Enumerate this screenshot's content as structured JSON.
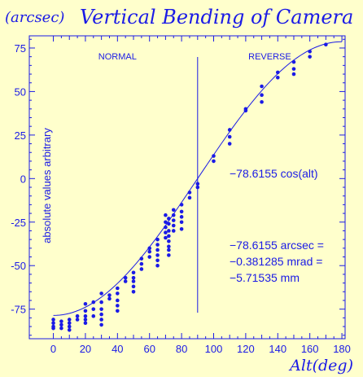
{
  "chart_data": {
    "type": "scatter",
    "unit_label": "(arcsec)",
    "title": "Vertical Bending of Camera",
    "xlabel": "Alt(deg)",
    "ylabel": "absolute values arbitrary",
    "xlim": [
      -15,
      182
    ],
    "ylim": [
      -92,
      82
    ],
    "xticks": [
      0,
      20,
      40,
      60,
      80,
      100,
      120,
      140,
      160,
      180
    ],
    "yticks": [
      75,
      50,
      25,
      0,
      -25,
      -50,
      -75
    ],
    "xtick_labels": [
      "0",
      "20",
      "40",
      "60",
      "80",
      "100",
      "120",
      "140",
      "160",
      "180"
    ],
    "ytick_labels": [
      "75",
      "50",
      "25",
      "0",
      "-25",
      "-50",
      "-75"
    ],
    "divider_x": 90,
    "regions": [
      {
        "label": "NORMAL",
        "x": 40
      },
      {
        "label": "REVERSE",
        "x": 135
      }
    ],
    "fit": {
      "amplitude": -78.6155,
      "label": "−78.6155  cos(alt)"
    },
    "fit_lines": [
      "−78.6155  arcsec =",
      "−0.381285  mrad =",
      "−5.71535  mm"
    ],
    "colors": {
      "accent": "#1a1ae6",
      "background": "#ffffcc"
    },
    "points": [
      [
        0,
        -81
      ],
      [
        0,
        -83
      ],
      [
        0,
        -85
      ],
      [
        0,
        -86
      ],
      [
        5,
        -82
      ],
      [
        5,
        -84
      ],
      [
        5,
        -86
      ],
      [
        10,
        -81
      ],
      [
        10,
        -83
      ],
      [
        10,
        -85
      ],
      [
        10,
        -87
      ],
      [
        15,
        -79
      ],
      [
        15,
        -81
      ],
      [
        20,
        -72
      ],
      [
        20,
        -76
      ],
      [
        20,
        -79
      ],
      [
        20,
        -81
      ],
      [
        20,
        -83
      ],
      [
        25,
        -71
      ],
      [
        25,
        -75
      ],
      [
        25,
        -79
      ],
      [
        30,
        -66
      ],
      [
        30,
        -71
      ],
      [
        30,
        -75
      ],
      [
        30,
        -78
      ],
      [
        30,
        -81
      ],
      [
        30,
        -84
      ],
      [
        35,
        -67
      ],
      [
        35,
        -69
      ],
      [
        40,
        -63
      ],
      [
        40,
        -66
      ],
      [
        40,
        -70
      ],
      [
        40,
        -73
      ],
      [
        40,
        -76
      ],
      [
        45,
        -57
      ],
      [
        45,
        -59
      ],
      [
        50,
        -54
      ],
      [
        50,
        -57
      ],
      [
        50,
        -59
      ],
      [
        50,
        -62
      ],
      [
        50,
        -65
      ],
      [
        55,
        -46
      ],
      [
        55,
        -49
      ],
      [
        55,
        -52
      ],
      [
        60,
        -40
      ],
      [
        60,
        -42
      ],
      [
        60,
        -45
      ],
      [
        65,
        -35
      ],
      [
        65,
        -38
      ],
      [
        65,
        -41
      ],
      [
        65,
        -44
      ],
      [
        65,
        -47
      ],
      [
        65,
        -50
      ],
      [
        70,
        -21
      ],
      [
        70,
        -25
      ],
      [
        70,
        -28
      ],
      [
        70,
        -31
      ],
      [
        70,
        -34
      ],
      [
        72,
        -23
      ],
      [
        72,
        -26
      ],
      [
        72,
        -30
      ],
      [
        72,
        -33
      ],
      [
        72,
        -36
      ],
      [
        72,
        -39
      ],
      [
        72,
        -41
      ],
      [
        72,
        -44
      ],
      [
        75,
        -18
      ],
      [
        75,
        -21
      ],
      [
        75,
        -24
      ],
      [
        75,
        -27
      ],
      [
        75,
        -30
      ],
      [
        80,
        -15
      ],
      [
        80,
        -19
      ],
      [
        80,
        -22
      ],
      [
        80,
        -25
      ],
      [
        80,
        -29
      ],
      [
        85,
        -8
      ],
      [
        85,
        -11
      ],
      [
        90,
        -3
      ],
      [
        90,
        -5
      ],
      [
        100,
        10
      ],
      [
        100,
        13
      ],
      [
        110,
        20
      ],
      [
        110,
        24
      ],
      [
        110,
        28
      ],
      [
        120,
        39
      ],
      [
        120,
        40
      ],
      [
        130,
        44
      ],
      [
        130,
        48
      ],
      [
        130,
        53
      ],
      [
        140,
        58
      ],
      [
        140,
        61
      ],
      [
        150,
        60
      ],
      [
        150,
        63
      ],
      [
        150,
        67
      ],
      [
        160,
        70
      ],
      [
        160,
        73
      ],
      [
        170,
        77
      ]
    ]
  }
}
